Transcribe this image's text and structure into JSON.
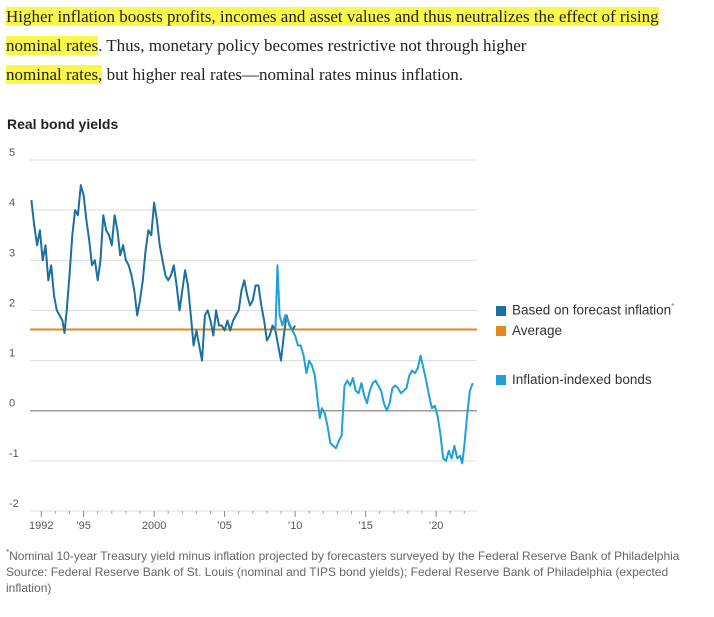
{
  "quote": {
    "part1": "Higher inflation boosts profits, incomes and asset values and thus neutralizes the effect of rising nominal rates",
    "part2": ".",
    "part3": " Thus, monetary policy becomes restrictive not through higher",
    "part4": "nominal rates,",
    "part5": " but higher real rates—nominal rates minus inflation."
  },
  "footnote_marker": "*",
  "footnote": "Nominal 10-year Treasury yield minus inflation projected by forecasters surveyed by the Federal Reserve Bank of Philadelphia",
  "source": "Source: Federal Reserve Bank of St. Louis (nominal and TIPS bond yields); Federal Reserve Bank of Philadelphia (expected inflation)",
  "colors": {
    "forecast": "#1c6fa0",
    "average": "#e08a1e",
    "tips": "#1fa0d8",
    "highlight": "#fbf64a",
    "zero": "#888888",
    "grid": "#dcdcdc"
  },
  "chart_data": {
    "type": "line",
    "title": "Real bond yields",
    "ylim": [
      -2,
      5
    ],
    "yticks": [
      5,
      4,
      3,
      2,
      1,
      0,
      -1,
      -2
    ],
    "xlim": [
      1991.2,
      2022.9
    ],
    "xticks": [
      {
        "x": 1992,
        "label": "1992"
      },
      {
        "x": 1995,
        "label": "’95"
      },
      {
        "x": 2000,
        "label": "2000"
      },
      {
        "x": 2005,
        "label": "’05"
      },
      {
        "x": 2010,
        "label": "’10"
      },
      {
        "x": 2015,
        "label": "’15"
      },
      {
        "x": 2020,
        "label": "’20"
      }
    ],
    "grid": true,
    "legend_position": "right",
    "average": {
      "name": "Average",
      "value": 1.62
    },
    "series": [
      {
        "name": "Based on forecast inflation",
        "name_marker": "*",
        "points": [
          [
            1991.3,
            4.2
          ],
          [
            1991.5,
            3.7
          ],
          [
            1991.7,
            3.3
          ],
          [
            1991.9,
            3.6
          ],
          [
            1992.1,
            3.0
          ],
          [
            1992.3,
            3.3
          ],
          [
            1992.5,
            2.6
          ],
          [
            1992.7,
            2.9
          ],
          [
            1992.9,
            2.3
          ],
          [
            1993.1,
            2.0
          ],
          [
            1993.3,
            1.9
          ],
          [
            1993.5,
            1.8
          ],
          [
            1993.65,
            1.55
          ],
          [
            1993.8,
            2.0
          ],
          [
            1994.0,
            2.7
          ],
          [
            1994.2,
            3.5
          ],
          [
            1994.4,
            4.0
          ],
          [
            1994.6,
            3.9
          ],
          [
            1994.8,
            4.5
          ],
          [
            1995.0,
            4.3
          ],
          [
            1995.2,
            3.8
          ],
          [
            1995.4,
            3.4
          ],
          [
            1995.6,
            2.9
          ],
          [
            1995.8,
            3.0
          ],
          [
            1996.0,
            2.6
          ],
          [
            1996.2,
            3.0
          ],
          [
            1996.4,
            3.9
          ],
          [
            1996.6,
            3.6
          ],
          [
            1996.8,
            3.5
          ],
          [
            1997.0,
            3.3
          ],
          [
            1997.2,
            3.9
          ],
          [
            1997.4,
            3.6
          ],
          [
            1997.6,
            3.1
          ],
          [
            1997.8,
            3.3
          ],
          [
            1998.0,
            3.0
          ],
          [
            1998.2,
            2.9
          ],
          [
            1998.4,
            2.7
          ],
          [
            1998.6,
            2.4
          ],
          [
            1998.8,
            1.9
          ],
          [
            1999.0,
            2.2
          ],
          [
            1999.2,
            2.6
          ],
          [
            1999.4,
            3.2
          ],
          [
            1999.6,
            3.6
          ],
          [
            1999.8,
            3.5
          ],
          [
            2000.0,
            4.15
          ],
          [
            2000.2,
            3.8
          ],
          [
            2000.4,
            3.3
          ],
          [
            2000.6,
            3.0
          ],
          [
            2000.8,
            2.7
          ],
          [
            2001.0,
            2.6
          ],
          [
            2001.2,
            2.7
          ],
          [
            2001.4,
            2.9
          ],
          [
            2001.6,
            2.5
          ],
          [
            2001.8,
            2.0
          ],
          [
            2002.0,
            2.4
          ],
          [
            2002.2,
            2.8
          ],
          [
            2002.4,
            2.5
          ],
          [
            2002.6,
            1.9
          ],
          [
            2002.8,
            1.3
          ],
          [
            2003.0,
            1.6
          ],
          [
            2003.2,
            1.3
          ],
          [
            2003.4,
            1.0
          ],
          [
            2003.6,
            1.9
          ],
          [
            2003.8,
            2.0
          ],
          [
            2004.0,
            1.8
          ],
          [
            2004.2,
            1.5
          ],
          [
            2004.4,
            2.0
          ],
          [
            2004.6,
            1.7
          ],
          [
            2004.8,
            1.7
          ],
          [
            2005.0,
            1.6
          ],
          [
            2005.2,
            1.8
          ],
          [
            2005.4,
            1.6
          ],
          [
            2005.6,
            1.8
          ],
          [
            2005.8,
            1.9
          ],
          [
            2006.0,
            2.0
          ],
          [
            2006.2,
            2.4
          ],
          [
            2006.4,
            2.6
          ],
          [
            2006.6,
            2.3
          ],
          [
            2006.8,
            2.1
          ],
          [
            2007.0,
            2.2
          ],
          [
            2007.2,
            2.5
          ],
          [
            2007.4,
            2.5
          ],
          [
            2007.6,
            2.1
          ],
          [
            2007.8,
            1.8
          ],
          [
            2008.0,
            1.4
          ],
          [
            2008.2,
            1.5
          ],
          [
            2008.4,
            1.7
          ],
          [
            2008.6,
            1.6
          ],
          [
            2008.8,
            1.3
          ],
          [
            2009.0,
            1.0
          ],
          [
            2009.2,
            1.5
          ],
          [
            2009.4,
            1.9
          ],
          [
            2009.6,
            1.7
          ],
          [
            2009.8,
            1.6
          ],
          [
            2010.0,
            1.7
          ]
        ]
      },
      {
        "name": "Inflation-indexed bonds",
        "points": [
          [
            2008.6,
            1.6
          ],
          [
            2008.75,
            2.9
          ],
          [
            2008.9,
            1.9
          ],
          [
            2009.1,
            1.7
          ],
          [
            2009.3,
            1.9
          ],
          [
            2009.5,
            1.8
          ],
          [
            2009.8,
            1.6
          ],
          [
            2010.0,
            1.5
          ],
          [
            2010.2,
            1.3
          ],
          [
            2010.4,
            1.3
          ],
          [
            2010.6,
            1.1
          ],
          [
            2010.8,
            0.75
          ],
          [
            2011.0,
            1.0
          ],
          [
            2011.2,
            0.9
          ],
          [
            2011.4,
            0.7
          ],
          [
            2011.6,
            0.2
          ],
          [
            2011.75,
            -0.15
          ],
          [
            2011.9,
            0.05
          ],
          [
            2012.1,
            -0.05
          ],
          [
            2012.3,
            -0.3
          ],
          [
            2012.5,
            -0.65
          ],
          [
            2012.7,
            -0.7
          ],
          [
            2012.9,
            -0.75
          ],
          [
            2013.1,
            -0.6
          ],
          [
            2013.3,
            -0.5
          ],
          [
            2013.5,
            0.5
          ],
          [
            2013.7,
            0.6
          ],
          [
            2013.9,
            0.5
          ],
          [
            2014.1,
            0.65
          ],
          [
            2014.3,
            0.4
          ],
          [
            2014.5,
            0.35
          ],
          [
            2014.7,
            0.55
          ],
          [
            2014.9,
            0.3
          ],
          [
            2015.1,
            0.15
          ],
          [
            2015.3,
            0.4
          ],
          [
            2015.5,
            0.55
          ],
          [
            2015.7,
            0.6
          ],
          [
            2015.9,
            0.5
          ],
          [
            2016.1,
            0.4
          ],
          [
            2016.3,
            0.15
          ],
          [
            2016.5,
            0.0
          ],
          [
            2016.7,
            0.15
          ],
          [
            2016.9,
            0.45
          ],
          [
            2017.1,
            0.5
          ],
          [
            2017.3,
            0.45
          ],
          [
            2017.5,
            0.35
          ],
          [
            2017.7,
            0.4
          ],
          [
            2017.9,
            0.45
          ],
          [
            2018.1,
            0.7
          ],
          [
            2018.3,
            0.8
          ],
          [
            2018.5,
            0.75
          ],
          [
            2018.7,
            0.85
          ],
          [
            2018.9,
            1.1
          ],
          [
            2019.1,
            0.85
          ],
          [
            2019.3,
            0.6
          ],
          [
            2019.5,
            0.3
          ],
          [
            2019.7,
            0.05
          ],
          [
            2019.9,
            0.1
          ],
          [
            2020.1,
            -0.1
          ],
          [
            2020.3,
            -0.45
          ],
          [
            2020.5,
            -0.95
          ],
          [
            2020.7,
            -1.0
          ],
          [
            2020.9,
            -0.8
          ],
          [
            2021.1,
            -0.95
          ],
          [
            2021.3,
            -0.7
          ],
          [
            2021.5,
            -0.95
          ],
          [
            2021.7,
            -0.9
          ],
          [
            2021.85,
            -1.05
          ],
          [
            2022.0,
            -0.7
          ],
          [
            2022.2,
            -0.1
          ],
          [
            2022.4,
            0.4
          ],
          [
            2022.6,
            0.55
          ]
        ]
      }
    ]
  }
}
